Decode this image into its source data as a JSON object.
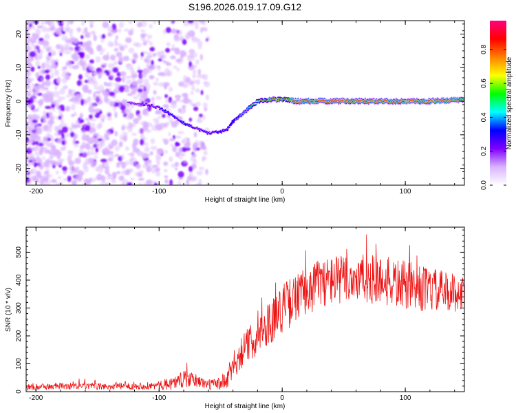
{
  "figure": {
    "title": "S196.2026.019.17.09.G12"
  },
  "chart_data": [
    {
      "type": "heatmap",
      "panel": "top",
      "xlabel": "Height of straight line (km)",
      "ylabel": "Frequency (Hz)",
      "xlim": [
        -208,
        148
      ],
      "ylim": [
        -25,
        24
      ],
      "xticks": [
        -200,
        -100,
        0,
        100
      ],
      "yticks": [
        -20,
        -10,
        0,
        10,
        20
      ],
      "colorbar": {
        "label": "Normalized spectral amplitude",
        "range": [
          0.0,
          0.97
        ],
        "ticks": [
          "0.0",
          "0.2",
          "0.4",
          "0.6",
          "0.8"
        ],
        "tick_values": [
          0.0,
          0.2,
          0.4,
          0.6,
          0.8
        ],
        "colors": [
          "#ffffff",
          "#d9b3ff",
          "#7f00ff",
          "#0000ff",
          "#00ffff",
          "#00ff00",
          "#ffff00",
          "#ff8000",
          "#ff0000",
          "#ff0080"
        ]
      },
      "ridge": {
        "height_km": [
          -125,
          -110,
          -100,
          -90,
          -80,
          -70,
          -60,
          -50,
          -45,
          -40,
          -30,
          -20,
          -10,
          0,
          5,
          10,
          20,
          40,
          60,
          80,
          100,
          120,
          148
        ],
        "frequency_hz": [
          -0.5,
          -1.0,
          -2.0,
          -4.0,
          -6.5,
          -8.0,
          -9.5,
          -9.0,
          -8.5,
          -6.0,
          -3.0,
          0.0,
          0.5,
          0.5,
          0.5,
          0.0,
          0.0,
          0.0,
          0.0,
          0.0,
          0.0,
          0.0,
          0.5
        ],
        "amplitude": [
          0.2,
          0.25,
          0.3,
          0.35,
          0.35,
          0.3,
          0.3,
          0.35,
          0.35,
          0.4,
          0.5,
          0.7,
          0.85,
          0.8,
          0.75,
          0.95,
          0.95,
          0.95,
          0.95,
          0.95,
          0.95,
          0.95,
          0.9
        ]
      },
      "noise_region_km": [
        -208,
        -60
      ]
    },
    {
      "type": "line",
      "panel": "bottom",
      "xlabel": "Height of straight line (km)",
      "ylabel": "SNR (10 * v/v)",
      "xlim": [
        -208,
        148
      ],
      "ylim": [
        0,
        590
      ],
      "xticks": [
        -200,
        -100,
        0,
        100
      ],
      "yticks": [
        0,
        100,
        200,
        300,
        400,
        500
      ],
      "color": "#ee1111",
      "series": [
        {
          "name": "SNR",
          "x": [
            -208,
            -180,
            -150,
            -120,
            -100,
            -90,
            -80,
            -70,
            -60,
            -50,
            -45,
            -40,
            -35,
            -30,
            -20,
            -10,
            0,
            10,
            20,
            30,
            40,
            60,
            80,
            100,
            120,
            140,
            148
          ],
          "y": [
            15,
            20,
            18,
            20,
            22,
            30,
            45,
            40,
            25,
            30,
            40,
            90,
            130,
            160,
            200,
            250,
            300,
            330,
            360,
            390,
            400,
            405,
            400,
            380,
            365,
            355,
            350
          ],
          "jitter": [
            12,
            12,
            12,
            12,
            15,
            25,
            30,
            25,
            18,
            25,
            40,
            50,
            60,
            60,
            70,
            80,
            90,
            90,
            90,
            90,
            90,
            90,
            90,
            90,
            80,
            70,
            60
          ]
        }
      ]
    }
  ]
}
